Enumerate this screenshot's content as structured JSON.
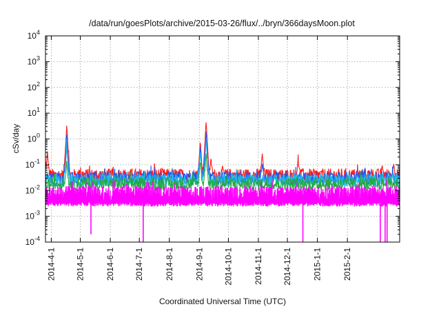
{
  "chart_data": {
    "type": "line",
    "title": "/data/run/goesPlots/archive/2015-03-26/flux/../bryn/366daysMoon.plot",
    "xlabel": "Coordinated Universal Time (UTC)",
    "ylabel": "cSv/day",
    "y_scale": "log",
    "ylim": [
      0.0001,
      10000
    ],
    "xlim_days": [
      0,
      366
    ],
    "x_start_date": "2014-03-26",
    "y_ticks": [
      {
        "base": "10",
        "exp": "-4",
        "value": 0.0001
      },
      {
        "base": "10",
        "exp": "-3",
        "value": 0.001
      },
      {
        "base": "10",
        "exp": "-2",
        "value": 0.01
      },
      {
        "base": "10",
        "exp": "-1",
        "value": 0.1
      },
      {
        "base": "10",
        "exp": "0",
        "value": 1
      },
      {
        "base": "10",
        "exp": "1",
        "value": 10
      },
      {
        "base": "10",
        "exp": "2",
        "value": 100
      },
      {
        "base": "10",
        "exp": "3",
        "value": 1000
      },
      {
        "base": "10",
        "exp": "4",
        "value": 10000
      }
    ],
    "x_ticks": [
      {
        "label": "2014-4-1",
        "day": 6
      },
      {
        "label": "2014-5-1",
        "day": 36
      },
      {
        "label": "2014-6-1",
        "day": 67
      },
      {
        "label": "2014-7-1",
        "day": 97
      },
      {
        "label": "2014-8-1",
        "day": 128
      },
      {
        "label": "2014-9-1",
        "day": 159
      },
      {
        "label": "2014-10-1",
        "day": 189
      },
      {
        "label": "2014-11-1",
        "day": 220
      },
      {
        "label": "2014-12-1",
        "day": 250
      },
      {
        "label": "2015-1-1",
        "day": 281
      },
      {
        "label": "2015-2-1",
        "day": 312
      }
    ],
    "grid": true,
    "legend": "none",
    "series": [
      {
        "name": "red",
        "color": "#ff1a1a",
        "baseline": 0.04,
        "peaks": [
          [
            0,
            0.05
          ],
          [
            2,
            0.35
          ],
          [
            22,
            3.5
          ],
          [
            160,
            0.9
          ],
          [
            166,
            5.0
          ],
          [
            171,
            0.2
          ],
          [
            183,
            0.09
          ],
          [
            224,
            0.3
          ],
          [
            261,
            0.15
          ],
          [
            262,
            0.09
          ],
          [
            348,
            0.1
          ],
          [
            360,
            0.12
          ]
        ]
      },
      {
        "name": "blue",
        "color": "#1a5aff",
        "baseline": 0.03,
        "peaks": [
          [
            22,
            1.5
          ],
          [
            160,
            0.6
          ],
          [
            166,
            2.2
          ],
          [
            224,
            0.12
          ]
        ]
      },
      {
        "name": "cyan",
        "color": "#22b8e8",
        "baseline": 0.025,
        "peaks": [
          [
            22,
            0.6
          ],
          [
            160,
            0.35
          ],
          [
            166,
            1.0
          ]
        ]
      },
      {
        "name": "green",
        "color": "#22aa44",
        "baseline": 0.018,
        "peaks": [
          [
            22,
            0.15
          ],
          [
            160,
            0.15
          ],
          [
            166,
            0.3
          ]
        ]
      },
      {
        "name": "magenta",
        "color": "#ff00ff",
        "baseline": 0.006,
        "min_band": 0.003,
        "max_band": 0.015,
        "dips": [
          [
            47,
            0.0002
          ],
          [
            101,
            0.0001
          ],
          [
            266,
            0.0001
          ],
          [
            346,
            0.0001
          ],
          [
            351,
            0.0001
          ],
          [
            353,
            0.0001
          ]
        ]
      }
    ]
  }
}
